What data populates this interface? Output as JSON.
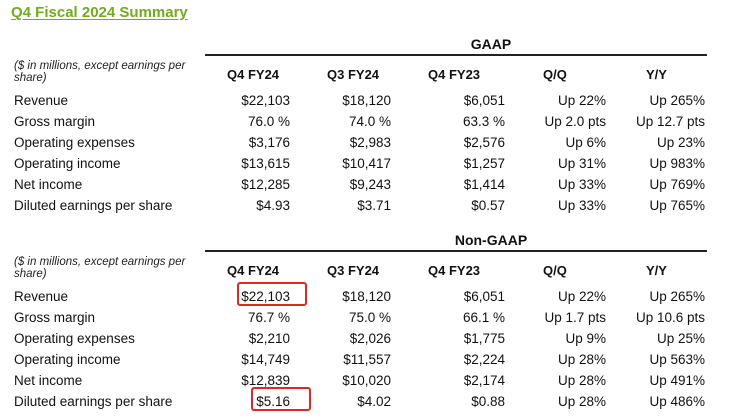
{
  "title": "Q4 Fiscal 2024 Summary",
  "columns": [
    "Q4 FY24",
    "Q3 FY24",
    "Q4 FY23",
    "Q/Q",
    "Y/Y"
  ],
  "note": "($ in millions, except earnings per share)",
  "gaap": {
    "heading": "GAAP",
    "rows": [
      {
        "label": "Revenue",
        "values": [
          "$22,103",
          "$18,120",
          "$6,051",
          "Up 22%",
          "Up 265%"
        ]
      },
      {
        "label": "Gross margin",
        "values": [
          "76.0 %",
          "74.0 %",
          "63.3 %",
          "Up 2.0 pts",
          "Up 12.7 pts"
        ]
      },
      {
        "label": "Operating expenses",
        "values": [
          "$3,176",
          "$2,983",
          "$2,576",
          "Up 6%",
          "Up 23%"
        ]
      },
      {
        "label": "Operating income",
        "values": [
          "$13,615",
          "$10,417",
          "$1,257",
          "Up 31%",
          "Up 983%"
        ]
      },
      {
        "label": "Net income",
        "values": [
          "$12,285",
          "$9,243",
          "$1,414",
          "Up 33%",
          "Up 769%"
        ]
      },
      {
        "label": "Diluted earnings per share",
        "values": [
          "$4.93",
          "$3.71",
          "$0.57",
          "Up 33%",
          "Up 765%"
        ]
      }
    ]
  },
  "nongaap": {
    "heading": "Non-GAAP",
    "rows": [
      {
        "label": "Revenue",
        "values": [
          "$22,103",
          "$18,120",
          "$6,051",
          "Up 22%",
          "Up 265%"
        ]
      },
      {
        "label": "Gross margin",
        "values": [
          "76.7 %",
          "75.0 %",
          "66.1 %",
          "Up 1.7 pts",
          "Up 10.6 pts"
        ]
      },
      {
        "label": "Operating expenses",
        "values": [
          "$2,210",
          "$2,026",
          "$1,775",
          "Up 9%",
          "Up 25%"
        ]
      },
      {
        "label": "Operating income",
        "values": [
          "$14,749",
          "$11,557",
          "$2,224",
          "Up 28%",
          "Up 563%"
        ]
      },
      {
        "label": "Net income",
        "values": [
          "$12,839",
          "$10,020",
          "$2,174",
          "Up 28%",
          "Up 491%"
        ]
      },
      {
        "label": "Diluted earnings per share",
        "values": [
          "$5.16",
          "$4.02",
          "$0.88",
          "Up 28%",
          "Up 486%"
        ]
      }
    ]
  },
  "highlight_color": "#e32626",
  "title_color": "#6fac1e"
}
